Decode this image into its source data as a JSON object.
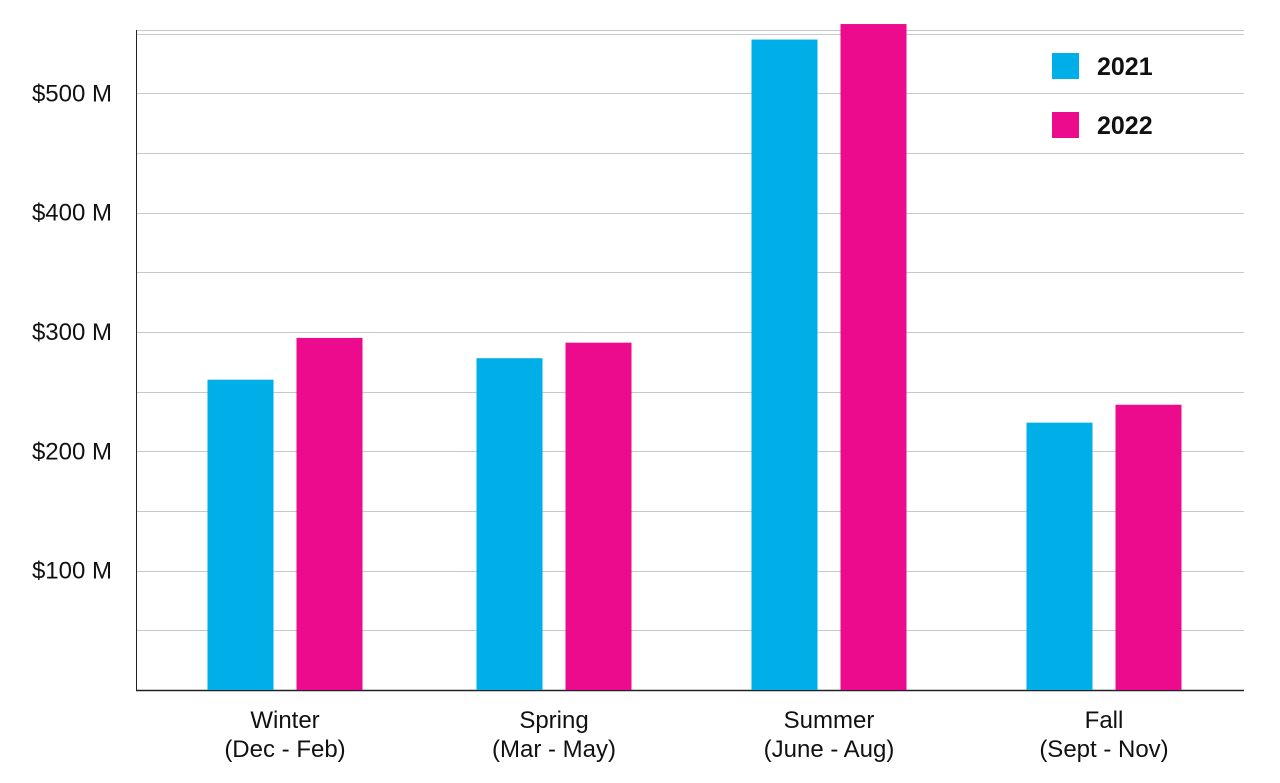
{
  "chart_data": {
    "type": "bar",
    "categories": [
      [
        "Winter",
        "(Dec - Feb)"
      ],
      [
        "Spring",
        "(Mar - May)"
      ],
      [
        "Summer",
        "(June - Aug)"
      ],
      [
        "Fall",
        "(Sept - Nov)"
      ]
    ],
    "series": [
      {
        "name": "2021",
        "color": "#00aee8",
        "values": [
          260,
          278,
          545,
          224
        ]
      },
      {
        "name": "2022",
        "color": "#ec0b8d",
        "values": [
          295,
          291,
          558,
          239
        ]
      }
    ],
    "y_ticks": [
      {
        "value": 100,
        "label": "$100 M"
      },
      {
        "value": 200,
        "label": "$200 M"
      },
      {
        "value": 300,
        "label": "$300 M"
      },
      {
        "value": 400,
        "label": "$400 M"
      },
      {
        "value": 500,
        "label": "$500 M"
      }
    ],
    "ylim": [
      0,
      553
    ],
    "grid": true,
    "grid_step": 50,
    "legend_position": "top-right",
    "title": "",
    "xlabel": "",
    "ylabel": ""
  }
}
